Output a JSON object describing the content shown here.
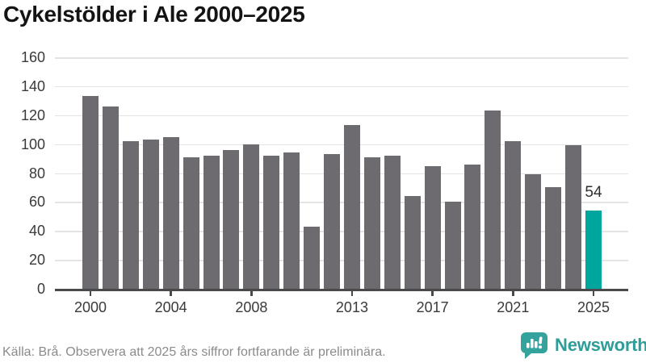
{
  "title": "Cykelstölder i Ale 2000–2025",
  "chart_data": {
    "type": "bar",
    "title": "Cykelstölder i Ale 2000–2025",
    "categories": [
      "2000",
      "2001",
      "2002",
      "2003",
      "2004",
      "2005",
      "2006",
      "2007",
      "2008",
      "2009",
      "2010",
      "2011",
      "2012",
      "2013",
      "2014",
      "2015",
      "2016",
      "2017",
      "2018",
      "2019",
      "2020",
      "2021",
      "2022",
      "2023",
      "2024",
      "2025"
    ],
    "values": [
      133,
      126,
      102,
      103,
      105,
      91,
      92,
      96,
      100,
      92,
      94,
      43,
      93,
      113,
      91,
      92,
      64,
      85,
      60,
      86,
      123,
      102,
      79,
      70,
      99,
      54
    ],
    "highlight_category": "2025",
    "highlight_value_label": "54",
    "xlabel": "",
    "ylabel": "",
    "ylim": [
      0,
      160
    ],
    "yticks": [
      0,
      20,
      40,
      60,
      80,
      100,
      120,
      140,
      160
    ],
    "xticks_shown": [
      "2000",
      "2004",
      "2008",
      "2013",
      "2017",
      "2021",
      "2025"
    ],
    "grid": "horizontal",
    "legend": "none",
    "colors": {
      "bar": "#6d6a70",
      "highlight_bar": "#00a59d",
      "gridline": "#e4e4e4",
      "axis": "#4a4a4a",
      "tick_label": "#3a3a3a"
    }
  },
  "footer": {
    "source_note": "Källa: Brå. Observera att 2025 års siffror fortfarande är preliminära."
  },
  "branding": {
    "name": "Newsworthy",
    "icon": "bar-chart-speech-bubble-icon",
    "color": "#2e9d97"
  }
}
